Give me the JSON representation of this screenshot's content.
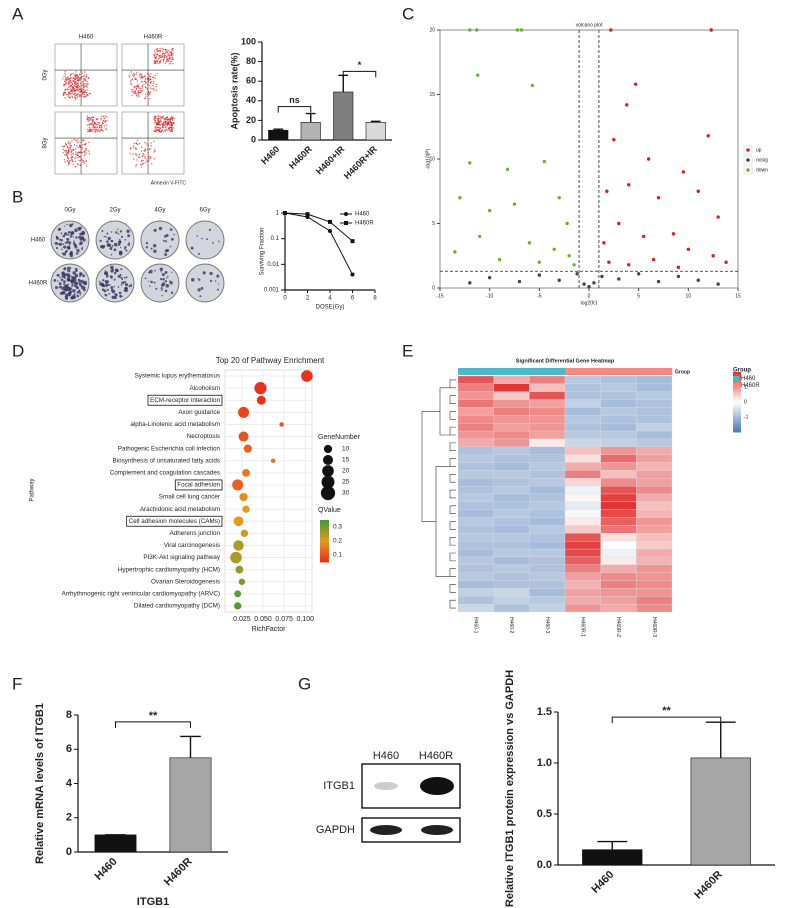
{
  "panel_labels": [
    "A",
    "B",
    "C",
    "D",
    "E",
    "F",
    "G"
  ],
  "flow": {
    "columns": [
      "H460",
      "H460R"
    ],
    "rows": [
      "0Gy",
      "8Gy"
    ],
    "xlabel": "Annexin V-FITC"
  },
  "colony": {
    "columns": [
      "0Gy",
      "2Gy",
      "4Gy",
      "6Gy"
    ],
    "rows": [
      "H460",
      "H460R"
    ]
  },
  "western": {
    "lanes": [
      "H460",
      "H460R"
    ],
    "proteins": [
      "ITGB1",
      "GAPDH"
    ]
  },
  "chart_data": [
    {
      "type": "bar",
      "ylabel": "Apoptosis rate(%)",
      "categories": [
        "H460",
        "H460R",
        "H460+IR",
        "H460R+IR"
      ],
      "values": [
        10,
        18,
        49,
        18
      ],
      "errors": [
        1,
        9,
        17,
        1
      ],
      "colors": [
        "#111111",
        "#b3b3b3",
        "#7f7f7f",
        "#d9d9d9"
      ],
      "ylim": [
        0,
        100
      ],
      "yticks": [
        0,
        20,
        40,
        60,
        80,
        100
      ],
      "annotations": [
        "ns",
        "*"
      ]
    },
    {
      "type": "line",
      "xlabel": "DOSE(Gy)",
      "ylabel": "Surviving Fraction",
      "x": [
        0,
        2,
        4,
        6
      ],
      "series": [
        {
          "name": "H460",
          "color": "#111111",
          "marker": "circle",
          "values": [
            1,
            0.7,
            0.2,
            0.004
          ]
        },
        {
          "name": "H460R",
          "color": "#111111",
          "marker": "square",
          "values": [
            1,
            0.9,
            0.45,
            0.08
          ]
        }
      ],
      "xlim": [
        0,
        8
      ],
      "xticks": [
        0,
        2,
        4,
        6,
        8
      ],
      "ylim": [
        0.001,
        1
      ],
      "yticks": [
        0.001,
        0.01,
        0.1,
        1
      ],
      "ylog": true,
      "legend": "upper right"
    },
    {
      "type": "scatter",
      "title": "volcano plot",
      "xlabel": "log2(fc)",
      "ylabel": "-log10(P)",
      "xlim": [
        -15,
        15
      ],
      "xticks": [
        -15,
        -10,
        -5,
        0,
        5,
        10,
        15
      ],
      "ylim": [
        0,
        20
      ],
      "yticks": [
        0,
        5,
        10,
        15,
        20
      ],
      "legend": "right",
      "series": [
        {
          "name": "up",
          "color": "#e0191f",
          "x": [
            2.2,
            12.3,
            4.7,
            3.8,
            2.5,
            6,
            9.5,
            12,
            4,
            1.8,
            7,
            11,
            13,
            3,
            5.5,
            8.5,
            1.5,
            10,
            12.5,
            6.5,
            2,
            4,
            9,
            13.8
          ],
          "values": [
            20,
            20,
            15.8,
            14.2,
            11.5,
            10,
            9,
            11.8,
            8,
            7.5,
            7,
            7.5,
            5.5,
            5,
            4,
            4.2,
            3.5,
            3,
            2.5,
            2.2,
            2,
            1.8,
            1.6,
            2
          ]
        },
        {
          "name": "nosig",
          "color": "#444444",
          "x": [
            -10,
            -7,
            -5,
            -3,
            -1.2,
            -0.5,
            0,
            0.5,
            1.3,
            3,
            5,
            7,
            9,
            11,
            13,
            -12
          ],
          "values": [
            0.8,
            0.5,
            1,
            0.6,
            1.1,
            0.3,
            0.1,
            0.4,
            0.9,
            0.7,
            1.1,
            0.5,
            0.9,
            0.6,
            0.3,
            0.4
          ]
        },
        {
          "name": "down",
          "color": "#6ab42d",
          "x": [
            -12,
            -11.3,
            -7.2,
            -6.8,
            -11.2,
            -5.7,
            -12,
            -8.2,
            -4.5,
            -13,
            -10,
            -7.5,
            -3,
            -2.2,
            -11,
            -6,
            -3.5,
            -2,
            -9,
            -5,
            -1.5,
            -13.5
          ],
          "values": [
            20,
            20,
            20,
            20,
            16.5,
            15.7,
            9.7,
            9.2,
            9.8,
            7,
            6,
            6.5,
            7,
            5,
            4,
            3.5,
            3,
            2.5,
            2.2,
            2,
            1.8,
            2.8
          ]
        }
      ]
    },
    {
      "type": "bubble",
      "title": "Top 20 of Pathway Enrichment",
      "xlabel": "RichFactor",
      "ylabel": "Pathway",
      "categories": [
        "Systemic lupus erythematosus",
        "Alcoholism",
        "ECM-receptor interaction",
        "Axon guidance",
        "alpha-Linolenic acid metabolism",
        "Necroptosis",
        "Pathogenic Escherichia coli infection",
        "Biosynthesis of unsaturated fatty acids",
        "Complement and coagulation cascades",
        "Focal adhesion",
        "Small cell lung cancer",
        "Arachidonic acid metabolism",
        "Cell adhesion molecules (CAMs)",
        "Adherens junction",
        "Viral carcinogenesis",
        "PI3K-Akt signaling pathway",
        "Hypertrophic cardiomyopathy (HCM)",
        "Ovarian Steroidogenesis",
        "Arrhythmogenic right ventricular cardiomyopathy (ARVC)",
        "Dilated cardiomyopathy (DCM)"
      ],
      "values": [
        0.102,
        0.047,
        0.048,
        0.027,
        0.072,
        0.027,
        0.032,
        0.062,
        0.03,
        0.02,
        0.027,
        0.03,
        0.021,
        0.028,
        0.021,
        0.018,
        0.022,
        0.025,
        0.02,
        0.02
      ],
      "gene_number": [
        20,
        22,
        12,
        18,
        3,
        15,
        10,
        3,
        9,
        18,
        10,
        8,
        14,
        8,
        16,
        20,
        9,
        6,
        7,
        8
      ],
      "qvalue": [
        0.05,
        0.05,
        0.05,
        0.08,
        0.1,
        0.1,
        0.12,
        0.15,
        0.15,
        0.12,
        0.18,
        0.2,
        0.2,
        0.22,
        0.25,
        0.25,
        0.28,
        0.3,
        0.32,
        0.33
      ],
      "xlim": [
        0.005,
        0.108
      ],
      "xticks": [
        {
          "value": 0.025,
          "label": "0.025"
        },
        {
          "value": 0.05,
          "label": "0.050"
        },
        {
          "value": 0.075,
          "label": "0.075"
        },
        {
          "value": 0.1,
          "label": "0.100"
        }
      ],
      "size_title": "GeneNumber",
      "size_legend": [
        10,
        15,
        20,
        25,
        30
      ],
      "color_title": "QValue",
      "qlim": [
        0.05,
        0.35
      ],
      "qticks": [
        0.1,
        0.2,
        0.3
      ],
      "colormap": [
        "#e8301c",
        "#e39a1f",
        "#3f9a3a"
      ],
      "grid": true
    },
    {
      "type": "heatmap",
      "title": "Significant Differential Gene Heatmap",
      "columns": [
        "H460-1",
        "H460-2",
        "H460-3",
        "H460R-1",
        "H460R-2",
        "H460R-3"
      ],
      "group_title": "Group",
      "groups": [
        "H460",
        "H460R"
      ],
      "group_colors": [
        "#4db8c8",
        "#f28b82"
      ],
      "colormap": [
        "#4a78b5",
        "#ffffff",
        "#e02a2a"
      ],
      "zlim": [
        -2,
        2
      ],
      "zticks": [
        -1,
        0,
        1
      ],
      "values": [
        [
          1.6,
          0.8,
          1.2,
          -0.8,
          -0.9,
          -1.0
        ],
        [
          1.2,
          1.9,
          0.6,
          -0.9,
          -0.8,
          -1.0
        ],
        [
          1.0,
          0.5,
          1.6,
          -0.9,
          -0.9,
          -0.8
        ],
        [
          1.3,
          1.0,
          0.9,
          -0.7,
          -1.0,
          -0.9
        ],
        [
          0.9,
          1.2,
          1.1,
          -1.0,
          -0.8,
          -0.9
        ],
        [
          1.1,
          1.0,
          1.0,
          -0.8,
          -0.9,
          -0.9
        ],
        [
          1.2,
          0.9,
          1.0,
          -0.9,
          -1.0,
          -0.7
        ],
        [
          1.0,
          1.1,
          0.9,
          -0.8,
          -0.8,
          -1.0
        ],
        [
          0.8,
          1.0,
          0.2,
          -0.6,
          -0.7,
          -0.8
        ],
        [
          -0.9,
          -0.8,
          -1.0,
          0.6,
          1.0,
          0.8
        ],
        [
          -0.8,
          -0.9,
          -0.9,
          0.3,
          1.4,
          0.9
        ],
        [
          -0.9,
          -1.0,
          -0.8,
          0.8,
          1.0,
          0.7
        ],
        [
          -0.8,
          -0.8,
          -0.9,
          1.2,
          0.6,
          0.9
        ],
        [
          -1.0,
          -0.9,
          -0.8,
          0.4,
          1.1,
          0.9
        ],
        [
          -0.9,
          -0.8,
          -1.0,
          -0.2,
          1.6,
          1.1
        ],
        [
          -0.8,
          -1.0,
          -0.9,
          0.1,
          1.8,
          0.8
        ],
        [
          -0.9,
          -0.9,
          -0.8,
          -0.3,
          1.9,
          0.6
        ],
        [
          -1.0,
          -0.8,
          -0.9,
          -0.1,
          1.7,
          0.7
        ],
        [
          -0.8,
          -0.9,
          -1.0,
          0.2,
          1.5,
          1.0
        ],
        [
          -0.9,
          -1.0,
          -0.8,
          0.5,
          1.3,
          0.9
        ],
        [
          -0.8,
          -0.8,
          -0.9,
          1.6,
          0.3,
          0.6
        ],
        [
          -0.9,
          -0.9,
          -1.0,
          1.8,
          0.0,
          0.5
        ],
        [
          -1.0,
          -0.8,
          -0.8,
          1.7,
          -0.2,
          0.8
        ],
        [
          -0.8,
          -1.0,
          -0.9,
          1.5,
          0.2,
          0.7
        ],
        [
          -0.9,
          -0.8,
          -0.9,
          1.2,
          0.8,
          1.0
        ],
        [
          -0.8,
          -0.9,
          -0.8,
          0.9,
          1.1,
          1.0
        ],
        [
          -1.0,
          -0.9,
          -0.9,
          0.7,
          1.2,
          1.1
        ],
        [
          -0.7,
          -0.6,
          -1.0,
          0.9,
          1.0,
          1.0
        ],
        [
          -0.9,
          -0.7,
          -0.8,
          0.8,
          0.9,
          1.2
        ],
        [
          -0.6,
          -0.9,
          -0.7,
          1.0,
          0.8,
          1.1
        ]
      ]
    },
    {
      "type": "bar",
      "ylabel": "Relative mRNA levels of ITGB1",
      "xlabel": "ITGB1",
      "categories": [
        "H460",
        "H460R"
      ],
      "values": [
        1,
        5.5
      ],
      "errors": [
        0,
        1.25
      ],
      "colors": [
        "#111111",
        "#a6a6a6"
      ],
      "ylim": [
        0,
        8
      ],
      "yticks": [
        0,
        2,
        4,
        6,
        8
      ],
      "annotations": [
        "**"
      ]
    },
    {
      "type": "bar",
      "ylabel": "Relative ITGB1 protein expression vs GAPDH",
      "categories": [
        "H460",
        "H460R"
      ],
      "values": [
        0.15,
        1.05
      ],
      "errors": [
        0.08,
        0.35
      ],
      "colors": [
        "#111111",
        "#a6a6a6"
      ],
      "ylim": [
        0,
        1.5
      ],
      "yticks": [
        {
          "value": 0,
          "label": "0.0"
        },
        {
          "value": 0.5,
          "label": "0.5"
        },
        {
          "value": 1,
          "label": "1.0"
        },
        {
          "value": 1.5,
          "label": "1.5"
        }
      ],
      "annotations": [
        "**"
      ]
    }
  ]
}
